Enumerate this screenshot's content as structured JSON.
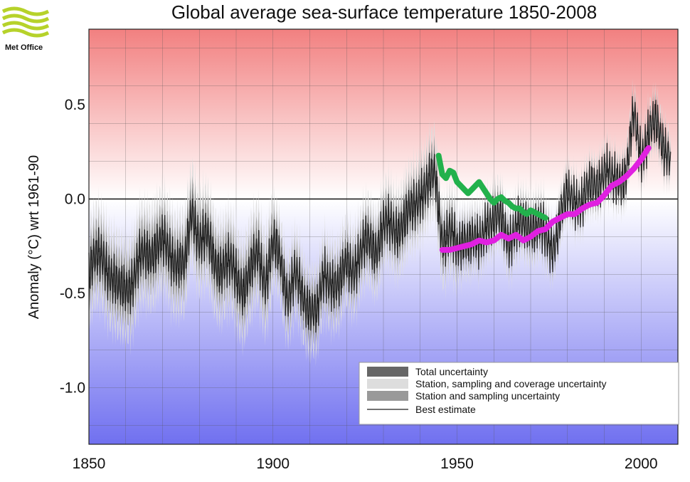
{
  "logo": {
    "text": "Met Office",
    "color": "#b6d22a"
  },
  "chart_data": {
    "type": "line",
    "title": "Global average sea-surface temperature 1850-2008",
    "xlabel": "",
    "ylabel": "Anomaly (°C) wrt 1961-90",
    "xlim": [
      1850,
      2010
    ],
    "ylim": [
      -1.3,
      0.9
    ],
    "x_ticks": [
      1850,
      1900,
      1950,
      2000
    ],
    "x_tick_labels": [
      "1850",
      "1900",
      "1950",
      "2000"
    ],
    "y_ticks": [
      0.5,
      0.0,
      -0.5,
      -1.0
    ],
    "y_tick_labels": [
      "0.5",
      "0.0",
      "-0.5",
      "-1.0"
    ],
    "grid": true,
    "legend": {
      "position": "bottom-right",
      "entries": [
        {
          "label": "Total uncertainty",
          "color": "#666666"
        },
        {
          "label": "Station, sampling and coverage uncertainty",
          "color": "#dddddd"
        },
        {
          "label": "Station and sampling uncertainty",
          "color": "#999999"
        },
        {
          "label": "Best estimate",
          "color": "#444444"
        }
      ]
    },
    "series": [
      {
        "name": "Best estimate",
        "color": "#222222",
        "x": [
          1850,
          1852,
          1854,
          1856,
          1858,
          1860,
          1862,
          1864,
          1866,
          1868,
          1870,
          1872,
          1874,
          1876,
          1878,
          1880,
          1882,
          1884,
          1886,
          1888,
          1890,
          1892,
          1894,
          1896,
          1898,
          1900,
          1902,
          1904,
          1906,
          1908,
          1910,
          1912,
          1914,
          1916,
          1918,
          1920,
          1922,
          1924,
          1926,
          1928,
          1930,
          1932,
          1934,
          1936,
          1938,
          1940,
          1942,
          1944,
          1946,
          1948,
          1950,
          1952,
          1954,
          1956,
          1958,
          1960,
          1962,
          1964,
          1966,
          1968,
          1970,
          1972,
          1974,
          1976,
          1978,
          1980,
          1982,
          1984,
          1986,
          1988,
          1990,
          1992,
          1994,
          1996,
          1998,
          2000,
          2002,
          2004,
          2006,
          2008
        ],
        "values": [
          -0.38,
          -0.33,
          -0.3,
          -0.4,
          -0.5,
          -0.46,
          -0.42,
          -0.33,
          -0.28,
          -0.25,
          -0.25,
          -0.28,
          -0.32,
          -0.38,
          -0.05,
          -0.2,
          -0.22,
          -0.32,
          -0.35,
          -0.36,
          -0.4,
          -0.46,
          -0.4,
          -0.28,
          -0.42,
          -0.26,
          -0.32,
          -0.5,
          -0.42,
          -0.52,
          -0.55,
          -0.62,
          -0.4,
          -0.42,
          -0.48,
          -0.34,
          -0.35,
          -0.3,
          -0.22,
          -0.25,
          -0.16,
          -0.15,
          -0.14,
          -0.12,
          -0.06,
          0.05,
          0.06,
          0.12,
          -0.2,
          -0.18,
          -0.28,
          -0.18,
          -0.23,
          -0.26,
          -0.1,
          -0.12,
          -0.12,
          -0.2,
          -0.16,
          -0.16,
          -0.12,
          -0.14,
          -0.22,
          -0.24,
          -0.1,
          0.0,
          0.02,
          -0.02,
          0.04,
          0.1,
          0.15,
          0.08,
          0.12,
          0.14,
          0.42,
          0.24,
          0.36,
          0.38,
          0.3,
          0.25
        ]
      },
      {
        "name": "Green overlay",
        "color": "#22b14c",
        "x": [
          1945,
          1946,
          1947,
          1948,
          1949,
          1950,
          1951,
          1952,
          1953,
          1954,
          1955,
          1956,
          1957,
          1958,
          1959,
          1960,
          1961,
          1962,
          1963,
          1964,
          1965,
          1966,
          1967,
          1968,
          1969,
          1970,
          1971,
          1972,
          1973,
          1974
        ],
        "values": [
          0.23,
          0.13,
          0.11,
          0.15,
          0.14,
          0.09,
          0.07,
          0.05,
          0.03,
          0.05,
          0.07,
          0.09,
          0.06,
          0.03,
          0.0,
          -0.02,
          0.0,
          0.01,
          -0.01,
          -0.02,
          -0.04,
          -0.05,
          -0.05,
          -0.07,
          -0.08,
          -0.06,
          -0.07,
          -0.08,
          -0.09,
          -0.1
        ]
      },
      {
        "name": "Magenta overlay",
        "color": "#e020e0",
        "x": [
          1946,
          1948,
          1950,
          1952,
          1954,
          1956,
          1958,
          1960,
          1962,
          1964,
          1966,
          1968,
          1970,
          1972,
          1974,
          1976,
          1978,
          1980,
          1982,
          1984,
          1986,
          1988,
          1990,
          1992,
          1994,
          1996,
          1998,
          2000,
          2002
        ],
        "values": [
          -0.27,
          -0.27,
          -0.26,
          -0.25,
          -0.24,
          -0.22,
          -0.23,
          -0.22,
          -0.19,
          -0.21,
          -0.19,
          -0.22,
          -0.2,
          -0.17,
          -0.16,
          -0.12,
          -0.1,
          -0.08,
          -0.08,
          -0.05,
          -0.03,
          -0.02,
          0.02,
          0.07,
          0.09,
          0.12,
          0.16,
          0.21,
          0.27
        ]
      }
    ]
  }
}
